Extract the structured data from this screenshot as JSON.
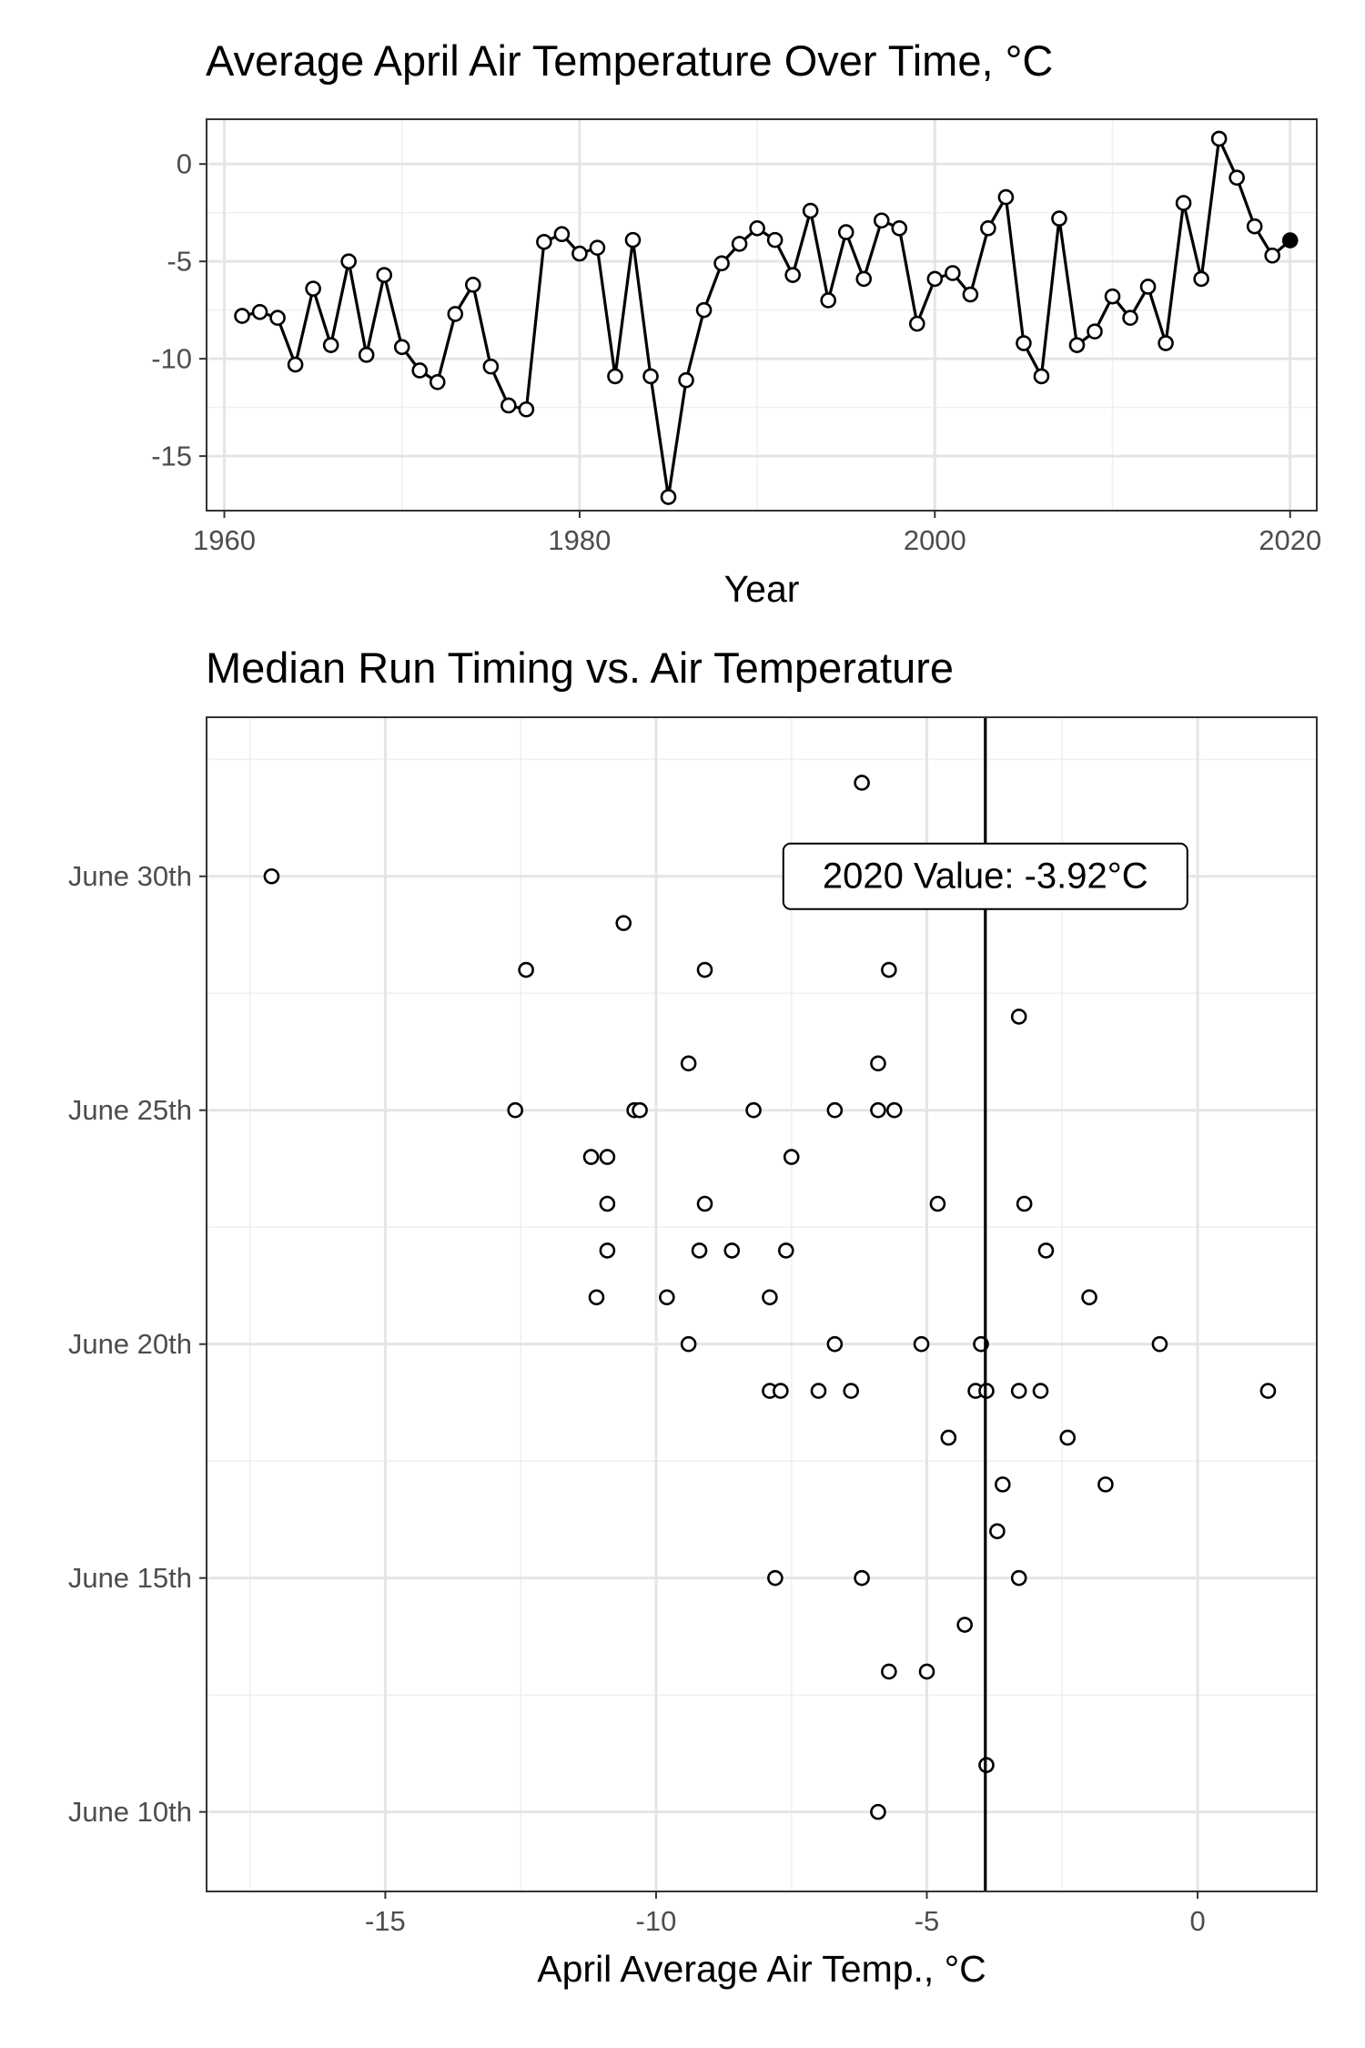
{
  "chart_data": [
    {
      "type": "line",
      "title": "Average April Air Temperature Over Time, °C",
      "xlabel": "Year",
      "ylabel": "",
      "xlim": [
        1959,
        2021.5
      ],
      "ylim": [
        -17.8,
        2.3
      ],
      "xticks": [
        1960,
        1980,
        2000,
        2020
      ],
      "yticks": [
        0,
        -5,
        -10,
        -15
      ],
      "ytick_labels": [
        "0",
        "-5",
        "-10",
        "-15"
      ],
      "grid": true,
      "highlight": {
        "x": 2020,
        "y": -3.92
      },
      "series": [
        {
          "x": [
            1961,
            1962,
            1963,
            1964,
            1965,
            1966,
            1967,
            1968,
            1969,
            1970,
            1971,
            1972,
            1973,
            1974,
            1975,
            1976,
            1977,
            1978,
            1979,
            1980,
            1981,
            1982,
            1983,
            1984,
            1985,
            1986,
            1987,
            1988,
            1989,
            1990,
            1991,
            1992,
            1993,
            1994,
            1995,
            1996,
            1997,
            1998,
            1999,
            2000,
            2001,
            2002,
            2003,
            2004,
            2005,
            2006,
            2007,
            2008,
            2009,
            2010,
            2011,
            2012,
            2013,
            2014,
            2015,
            2016,
            2017,
            2018,
            2019,
            2020
          ],
          "y": [
            -7.8,
            -7.6,
            -7.9,
            -10.3,
            -6.4,
            -9.3,
            -5,
            -9.8,
            -5.7,
            -9.4,
            -10.6,
            -11.2,
            -7.7,
            -6.2,
            -10.4,
            -12.4,
            -12.6,
            -4,
            -3.6,
            -4.6,
            -4.3,
            -10.9,
            -3.9,
            -10.9,
            -17.1,
            -11.1,
            -7.5,
            -5.1,
            -4.1,
            -3.3,
            -3.9,
            -5.7,
            -2.4,
            -7,
            -3.5,
            -5.9,
            -2.9,
            -3.3,
            -8.2,
            -5.9,
            -5.6,
            -6.7,
            -3.3,
            -1.7,
            -9.2,
            -10.9,
            -2.8,
            -9.3,
            -8.6,
            -6.8,
            -7.9,
            -6.3,
            -9.2,
            -2,
            -5.9,
            1.3,
            -0.7,
            -3.2,
            -4.7,
            -3.92
          ]
        }
      ]
    },
    {
      "type": "scatter",
      "title": "Median Run Timing vs. Air Temperature",
      "xlabel": "April Average Air Temp., °C",
      "ylabel": "",
      "xlim": [
        -18.3,
        2.2
      ],
      "ylim": [
        8.3,
        33.4
      ],
      "xticks": [
        -15,
        -10,
        -5,
        0
      ],
      "xtick_labels": [
        "-15",
        "-10",
        "-5",
        "0"
      ],
      "yticks": [
        10,
        15,
        20,
        25,
        30
      ],
      "ytick_labels": [
        "June 10th",
        "June 15th",
        "June 20th",
        "June 25th",
        "June 30th"
      ],
      "grid": true,
      "reference_line": {
        "x": -3.92,
        "label": "2020 Value: -3.92°C",
        "label_y": 30
      },
      "series": [
        {
          "points": [
            [
              -17.1,
              30
            ],
            [
              -6.2,
              32
            ],
            [
              -10.6,
              29
            ],
            [
              -12.4,
              28
            ],
            [
              -9.1,
              28
            ],
            [
              -5.7,
              28
            ],
            [
              -3.3,
              27
            ],
            [
              -9.4,
              26
            ],
            [
              -5.9,
              26
            ],
            [
              -12.6,
              25
            ],
            [
              -10.4,
              25
            ],
            [
              -10.3,
              25
            ],
            [
              -8.2,
              25
            ],
            [
              -6.7,
              25
            ],
            [
              -5.9,
              25
            ],
            [
              -5.6,
              25
            ],
            [
              -11.2,
              24
            ],
            [
              -10.9,
              24
            ],
            [
              -7.5,
              24
            ],
            [
              -10.9,
              23
            ],
            [
              -9.1,
              23
            ],
            [
              -4.8,
              23
            ],
            [
              -3.2,
              23
            ],
            [
              -10.9,
              22
            ],
            [
              -9.2,
              22
            ],
            [
              -8.6,
              22
            ],
            [
              -7.6,
              22
            ],
            [
              -2.8,
              22
            ],
            [
              -11.1,
              21
            ],
            [
              -9.8,
              21
            ],
            [
              -7.9,
              21
            ],
            [
              -2,
              21
            ],
            [
              -9.4,
              20
            ],
            [
              -6.7,
              20
            ],
            [
              -5.1,
              20
            ],
            [
              -4,
              20
            ],
            [
              -0.7,
              20
            ],
            [
              -7.9,
              19
            ],
            [
              -7.7,
              19
            ],
            [
              -7,
              19
            ],
            [
              -6.4,
              19
            ],
            [
              -4.1,
              19
            ],
            [
              -3.9,
              19
            ],
            [
              -3.3,
              19
            ],
            [
              -2.9,
              19
            ],
            [
              1.3,
              19
            ],
            [
              -4.6,
              18
            ],
            [
              -2.4,
              18
            ],
            [
              -3.6,
              17
            ],
            [
              -1.7,
              17
            ],
            [
              -3.7,
              16
            ],
            [
              -7.8,
              15
            ],
            [
              -6.2,
              15
            ],
            [
              -3.3,
              15
            ],
            [
              -4.3,
              14
            ],
            [
              -5.7,
              13
            ],
            [
              -5,
              13
            ],
            [
              -3.9,
              11
            ],
            [
              -5.9,
              10
            ]
          ]
        }
      ]
    }
  ]
}
